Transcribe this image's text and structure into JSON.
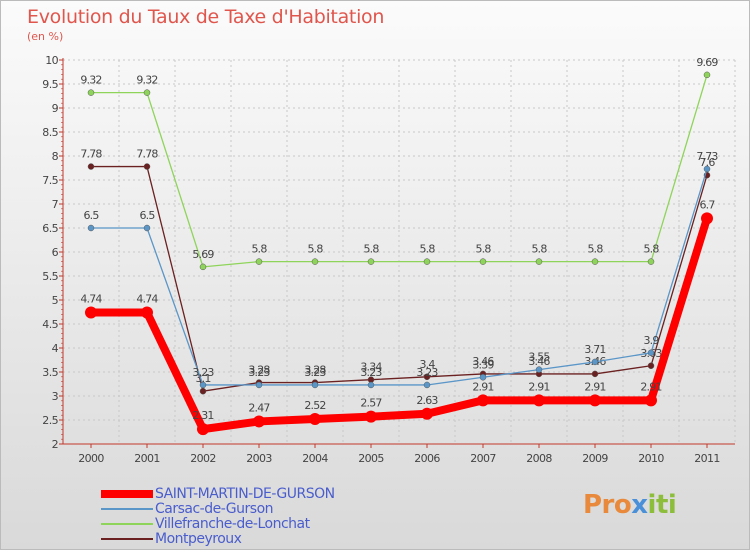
{
  "chart_data": {
    "type": "line",
    "title": "Evolution du Taux de Taxe d'Habitation",
    "subtitle": "(en %)",
    "categories": [
      "2000",
      "2001",
      "2002",
      "2003",
      "2004",
      "2005",
      "2006",
      "2007",
      "2008",
      "2009",
      "2010",
      "2011"
    ],
    "ylim": [
      2,
      10
    ],
    "yticks": [
      "2",
      "2.5",
      "3",
      "3.5",
      "4",
      "4.5",
      "5",
      "5.5",
      "6",
      "6.5",
      "7",
      "7.5",
      "8",
      "8.5",
      "9",
      "9.5",
      "10"
    ],
    "grid": true,
    "legend_position": "bottom-left",
    "series": [
      {
        "name": "SAINT-MARTIN-DE-GURSON",
        "color": "#ff0000",
        "values": [
          4.74,
          4.74,
          2.31,
          2.47,
          2.52,
          2.57,
          2.63,
          2.91,
          2.91,
          2.91,
          2.91,
          6.7
        ],
        "labels": [
          "4.74",
          "4.74",
          "2.31",
          "2.47",
          "2.52",
          "2.57",
          "2.63",
          "2.91",
          "2.91",
          "2.91",
          "2.91",
          "6.7"
        ]
      },
      {
        "name": "Carsac-de-Gurson",
        "color": "#5a96c8",
        "values": [
          6.5,
          6.5,
          3.23,
          3.23,
          3.23,
          3.23,
          3.23,
          3.39,
          3.55,
          3.71,
          3.9,
          7.73
        ],
        "labels": [
          "6.5",
          "6.5",
          "3.23",
          "3.23",
          "3.23",
          "3.23",
          "3.23",
          "3.39",
          "3.55",
          "3.71",
          "3.9",
          "7.73"
        ]
      },
      {
        "name": "Villefranche-de-Lonchat",
        "color": "#8fd45a",
        "values": [
          9.32,
          9.32,
          5.69,
          5.8,
          5.8,
          5.8,
          5.8,
          5.8,
          5.8,
          5.8,
          5.8,
          9.69
        ],
        "labels": [
          "9.32",
          "9.32",
          "5.69",
          "5.8",
          "5.8",
          "5.8",
          "5.8",
          "5.8",
          "5.8",
          "5.8",
          "5.8",
          "9.69"
        ]
      },
      {
        "name": "Montpeyroux",
        "color": "#6b2121",
        "values": [
          7.78,
          7.78,
          3.1,
          3.28,
          3.28,
          3.34,
          3.4,
          3.46,
          3.46,
          3.46,
          3.63,
          7.6
        ],
        "labels": [
          "7.78",
          "7.78",
          "3.1",
          "3.28",
          "3.28",
          "3.34",
          "3.4",
          "3.46",
          "3.46",
          "3.46",
          "3.63",
          "7.6"
        ]
      }
    ]
  },
  "brand": {
    "p1": "Pro",
    "p2": "x",
    "p3": "iti"
  }
}
